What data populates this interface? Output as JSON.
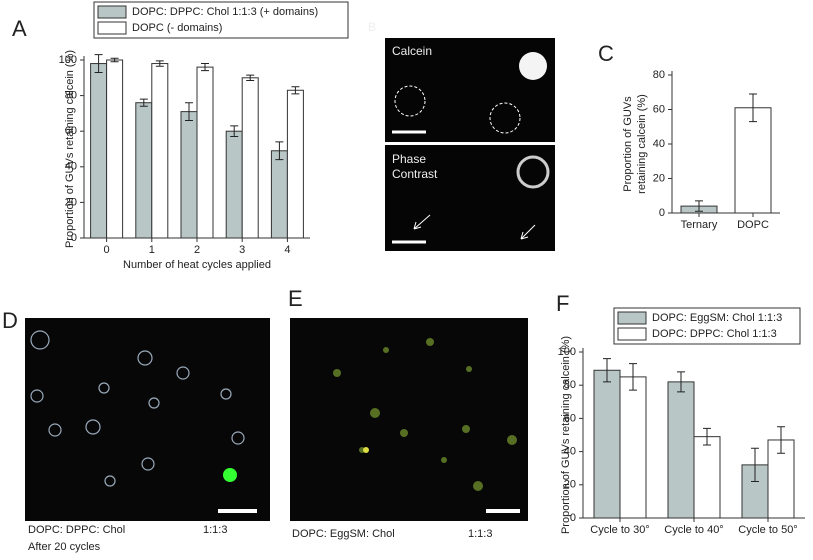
{
  "chart_data": [
    {
      "type": "bar",
      "panel": "A",
      "ylabel": "Proportion of GUVs retaining calcein (%)",
      "xlabel": "Number of heat cycles applied",
      "categories": [
        "0",
        "1",
        "2",
        "3",
        "4"
      ],
      "series": [
        {
          "name": "DOPC: DPPC: Chol   1:1:3 (+ domains)",
          "color": "#b9c6c6",
          "values": [
            98,
            76,
            71,
            60,
            49
          ],
          "errors": [
            5,
            2,
            5,
            3,
            5
          ]
        },
        {
          "name": "DOPC  (- domains)",
          "color": "#ffffff",
          "values": [
            100,
            98,
            96,
            90,
            83
          ],
          "errors": [
            1,
            1.5,
            2,
            1.5,
            2
          ]
        }
      ],
      "ylim": [
        0,
        100
      ],
      "yticks": [
        0,
        20,
        40,
        60,
        80,
        100
      ]
    },
    {
      "type": "bar",
      "panel": "C",
      "ylabel": [
        "Proportion of GUVs",
        "retaining calcein (%)"
      ],
      "categories": [
        "Ternary",
        "DOPC"
      ],
      "series": [
        {
          "colors": [
            "#b9c6c6",
            "#ffffff"
          ],
          "values": [
            4,
            61
          ],
          "errors": [
            3,
            8
          ]
        }
      ],
      "ylim": [
        0,
        80
      ],
      "yticks": [
        0,
        20,
        40,
        60,
        80
      ]
    },
    {
      "type": "bar",
      "panel": "F",
      "ylabel": "Proportion of GUVs retaining calcein (%)",
      "categories": [
        "Cycle to 30°",
        "Cycle to 40°",
        "Cycle to 50°"
      ],
      "series": [
        {
          "name": "DOPC: EggSM: Chol  1:1:3",
          "color": "#b9c6c6",
          "values": [
            89,
            82,
            32
          ],
          "errors": [
            7,
            6,
            10
          ]
        },
        {
          "name": "DOPC: DPPC: Chol  1:1:3",
          "color": "#ffffff",
          "values": [
            85,
            49,
            47
          ],
          "errors": [
            8,
            5,
            8
          ]
        }
      ],
      "ylim": [
        0,
        100
      ],
      "yticks": [
        0,
        20,
        40,
        60,
        80,
        100
      ]
    }
  ],
  "images": [
    {
      "panel": "B",
      "labels": [
        "Calcein",
        "Phase",
        "Contrast"
      ]
    },
    {
      "panel": "D",
      "caption": [
        "DOPC: DPPC: Chol",
        "1:1:3",
        "After 20 cycles"
      ]
    },
    {
      "panel": "E",
      "caption": [
        "DOPC: EggSM: Chol",
        "1:1:3"
      ]
    }
  ]
}
